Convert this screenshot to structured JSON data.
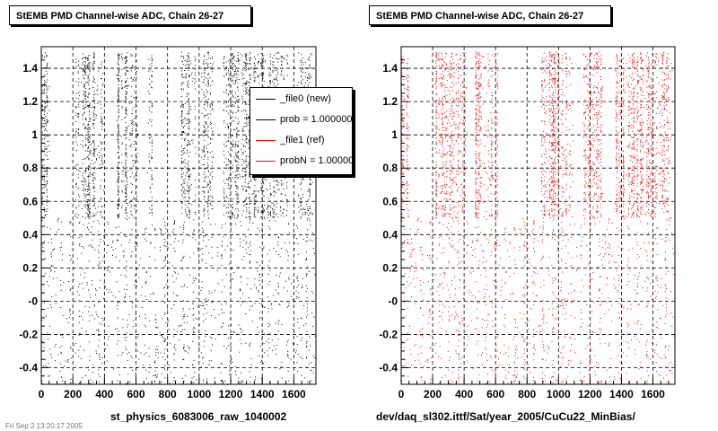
{
  "chart_data": [
    {
      "type": "scatter",
      "title": "StEMB PMD Channel-wise ADC, Chain 26-27",
      "xlabel": "st_physics_6083006_raw_1040002",
      "ylabel": "",
      "xlim": [
        0,
        1740
      ],
      "ylim": [
        -0.5,
        1.53
      ],
      "x_ticks": [
        0,
        200,
        400,
        600,
        800,
        1000,
        1200,
        1400,
        1600
      ],
      "y_ticks": [
        -0.4,
        -0.2,
        -0.0,
        0.2,
        0.4,
        0.6,
        0.8,
        1.0,
        1.2,
        1.4
      ],
      "y_tick_labels": [
        "-0.4",
        "-0.2",
        "-0",
        "0.2",
        "0.4",
        "0.6",
        "0.8",
        "1",
        "1.2",
        "1.4"
      ],
      "x_tick_labels": [
        "0",
        "200",
        "400",
        "600",
        "800",
        "1000",
        "1200",
        "1400",
        "1600"
      ],
      "grid": true,
      "series": [
        {
          "name": "_file0 (new)",
          "color": "#000000",
          "upper_band": {
            "y_range": [
              0.5,
              1.5
            ],
            "x_clusters": [
              [
                0,
                50
              ],
              [
                210,
                390
              ],
              [
                470,
                610
              ],
              [
                670,
                700
              ],
              [
                880,
                980
              ],
              [
                1010,
                1090
              ],
              [
                1150,
                1560
              ],
              [
                1620,
                1720
              ]
            ]
          },
          "lower_band": {
            "y_range": [
              -0.5,
              0.5
            ],
            "x_clusters": [
              [
                0,
                1740
              ]
            ]
          }
        }
      ],
      "legend": {
        "placement": "top-right",
        "entries": [
          {
            "label": "_file0 (new)",
            "color": "#000000"
          },
          {
            "label": "prob = 1.000000",
            "color": "#000000"
          },
          {
            "label": "_file1 (ref)",
            "color": "#ff0000"
          },
          {
            "label": "probN = 1.000000",
            "color": "#ff0000"
          }
        ]
      }
    },
    {
      "type": "scatter",
      "title": "StEMB PMD Channel-wise ADC, Chain 26-27",
      "xlabel": "dev/daq_sl302.ittf/Sat/year_2005/CuCu22_MinBias/",
      "ylabel": "",
      "xlim": [
        0,
        1740
      ],
      "ylim": [
        -0.5,
        1.53
      ],
      "x_ticks": [
        0,
        200,
        400,
        600,
        800,
        1000,
        1200,
        1400,
        1600
      ],
      "y_ticks": [
        -0.4,
        -0.2,
        -0.0,
        0.2,
        0.4,
        0.6,
        0.8,
        1.0,
        1.2,
        1.4
      ],
      "y_tick_labels": [
        "-0.4",
        "-0.2",
        "-0",
        "0.2",
        "0.4",
        "0.6",
        "0.8",
        "1",
        "1.2",
        "1.4"
      ],
      "x_tick_labels": [
        "0",
        "200",
        "400",
        "600",
        "800",
        "1000",
        "1200",
        "1400",
        "1600"
      ],
      "grid": true,
      "series": [
        {
          "name": "_file1 (ref)",
          "color": "#ff0000",
          "upper_band": {
            "y_range": [
              0.5,
              1.5
            ],
            "x_clusters": [
              [
                0,
                50
              ],
              [
                210,
                420
              ],
              [
                470,
                610
              ],
              [
                880,
                1090
              ],
              [
                1150,
                1280
              ],
              [
                1360,
                1720
              ]
            ]
          },
          "lower_band": {
            "y_range": [
              -0.5,
              0.5
            ],
            "x_clusters": [
              [
                0,
                1740
              ]
            ]
          }
        }
      ]
    }
  ],
  "footer": {
    "left_caption": "st_physics_6083006_raw_1040002",
    "right_caption": "dev/daq_sl302.ittf/Sat/year_2005/CuCu22_MinBias/",
    "corner_text": "Fri Sep 2 13:20:17 2005"
  }
}
